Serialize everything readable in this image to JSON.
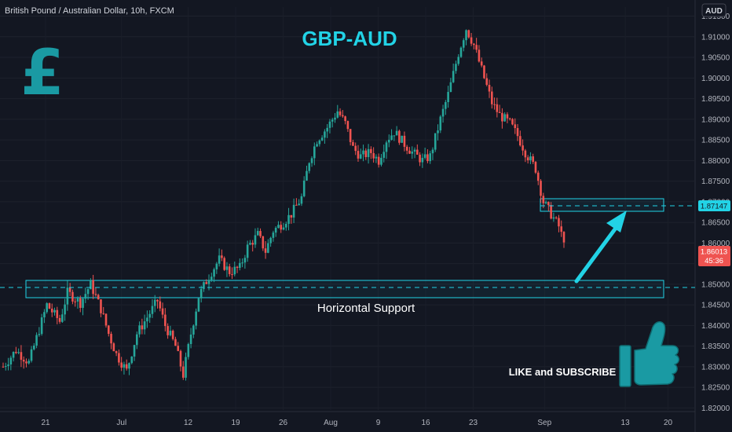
{
  "header": {
    "symbol_title": "British Pound / Australian Dollar, 10h, FXCM",
    "currency_button": "AUD"
  },
  "annotations": {
    "chart_title": "GBP-AUD",
    "support_label": "Horizontal Support",
    "cta": "LIKE and SUBSCRIBE",
    "currency_symbol": "£"
  },
  "price_tags": {
    "level_tag": "1.87147",
    "last_price": "1.86013",
    "countdown": "45:36"
  },
  "colors": {
    "background": "#131722",
    "bull": "#26a69a",
    "bear": "#ef5350",
    "accent": "#22d3e6",
    "annotation": "#1a9aa3",
    "axis_text": "#b2b5be"
  },
  "chart_data": {
    "type": "candlestick",
    "title": "GBP-AUD",
    "symbol": "British Pound / Australian Dollar, 10h, FXCM",
    "timeframe": "10h",
    "y_ticks": [
      "1.91500",
      "1.91000",
      "1.90500",
      "1.90000",
      "1.89500",
      "1.89000",
      "1.88500",
      "1.88000",
      "1.87500",
      "1.87000",
      "1.86500",
      "1.86000",
      "1.85500",
      "1.85000",
      "1.84500",
      "1.84000",
      "1.83500",
      "1.83000",
      "1.82500",
      "1.82000"
    ],
    "x_ticks": [
      "21",
      "Jul",
      "12",
      "19",
      "26",
      "Aug",
      "9",
      "16",
      "23",
      "Sep",
      "13",
      "20"
    ],
    "ylim": [
      1.8195,
      1.9172
    ],
    "support_zone": [
      1.849,
      1.853
    ],
    "support_level": 1.8512,
    "resistance_zone": [
      1.8702,
      1.873
    ],
    "resistance_level": 1.87147,
    "last_price": 1.86013,
    "close_path": [
      [
        0,
        1.83
      ],
      [
        5,
        1.834
      ],
      [
        10,
        1.831
      ],
      [
        14,
        1.839
      ],
      [
        17,
        1.845
      ],
      [
        22,
        1.841
      ],
      [
        25,
        1.848
      ],
      [
        30,
        1.8455
      ],
      [
        34,
        1.85
      ],
      [
        38,
        1.844
      ],
      [
        41,
        1.838
      ],
      [
        44,
        1.833
      ],
      [
        48,
        1.829
      ],
      [
        52,
        1.838
      ],
      [
        56,
        1.842
      ],
      [
        60,
        1.846
      ],
      [
        63,
        1.84
      ],
      [
        67,
        1.835
      ],
      [
        70,
        1.828
      ],
      [
        73,
        1.838
      ],
      [
        76,
        1.847
      ],
      [
        80,
        1.852
      ],
      [
        84,
        1.856
      ],
      [
        88,
        1.853
      ],
      [
        92,
        1.854
      ],
      [
        95,
        1.859
      ],
      [
        99,
        1.862
      ],
      [
        102,
        1.858
      ],
      [
        105,
        1.863
      ],
      [
        109,
        1.865
      ],
      [
        112,
        1.867
      ],
      [
        116,
        1.871
      ],
      [
        119,
        1.88
      ],
      [
        122,
        1.885
      ],
      [
        126,
        1.888
      ],
      [
        130,
        1.892
      ],
      [
        133,
        1.889
      ],
      [
        136,
        1.883
      ],
      [
        139,
        1.881
      ],
      [
        143,
        1.882
      ],
      [
        146,
        1.88
      ],
      [
        149,
        1.885
      ],
      [
        152,
        1.887
      ],
      [
        156,
        1.884
      ],
      [
        159,
        1.882
      ],
      [
        163,
        1.88
      ],
      [
        166,
        1.881
      ],
      [
        170,
        1.89
      ],
      [
        173,
        1.896
      ],
      [
        177,
        1.906
      ],
      [
        180,
        1.912
      ],
      [
        183,
        1.908
      ],
      [
        187,
        1.9
      ],
      [
        190,
        1.894
      ],
      [
        193,
        1.891
      ],
      [
        197,
        1.889
      ],
      [
        200,
        1.886
      ],
      [
        203,
        1.882
      ],
      [
        207,
        1.878
      ],
      [
        210,
        1.87
      ],
      [
        213,
        1.867
      ],
      [
        216,
        1.864
      ],
      [
        218,
        1.8601
      ]
    ]
  }
}
